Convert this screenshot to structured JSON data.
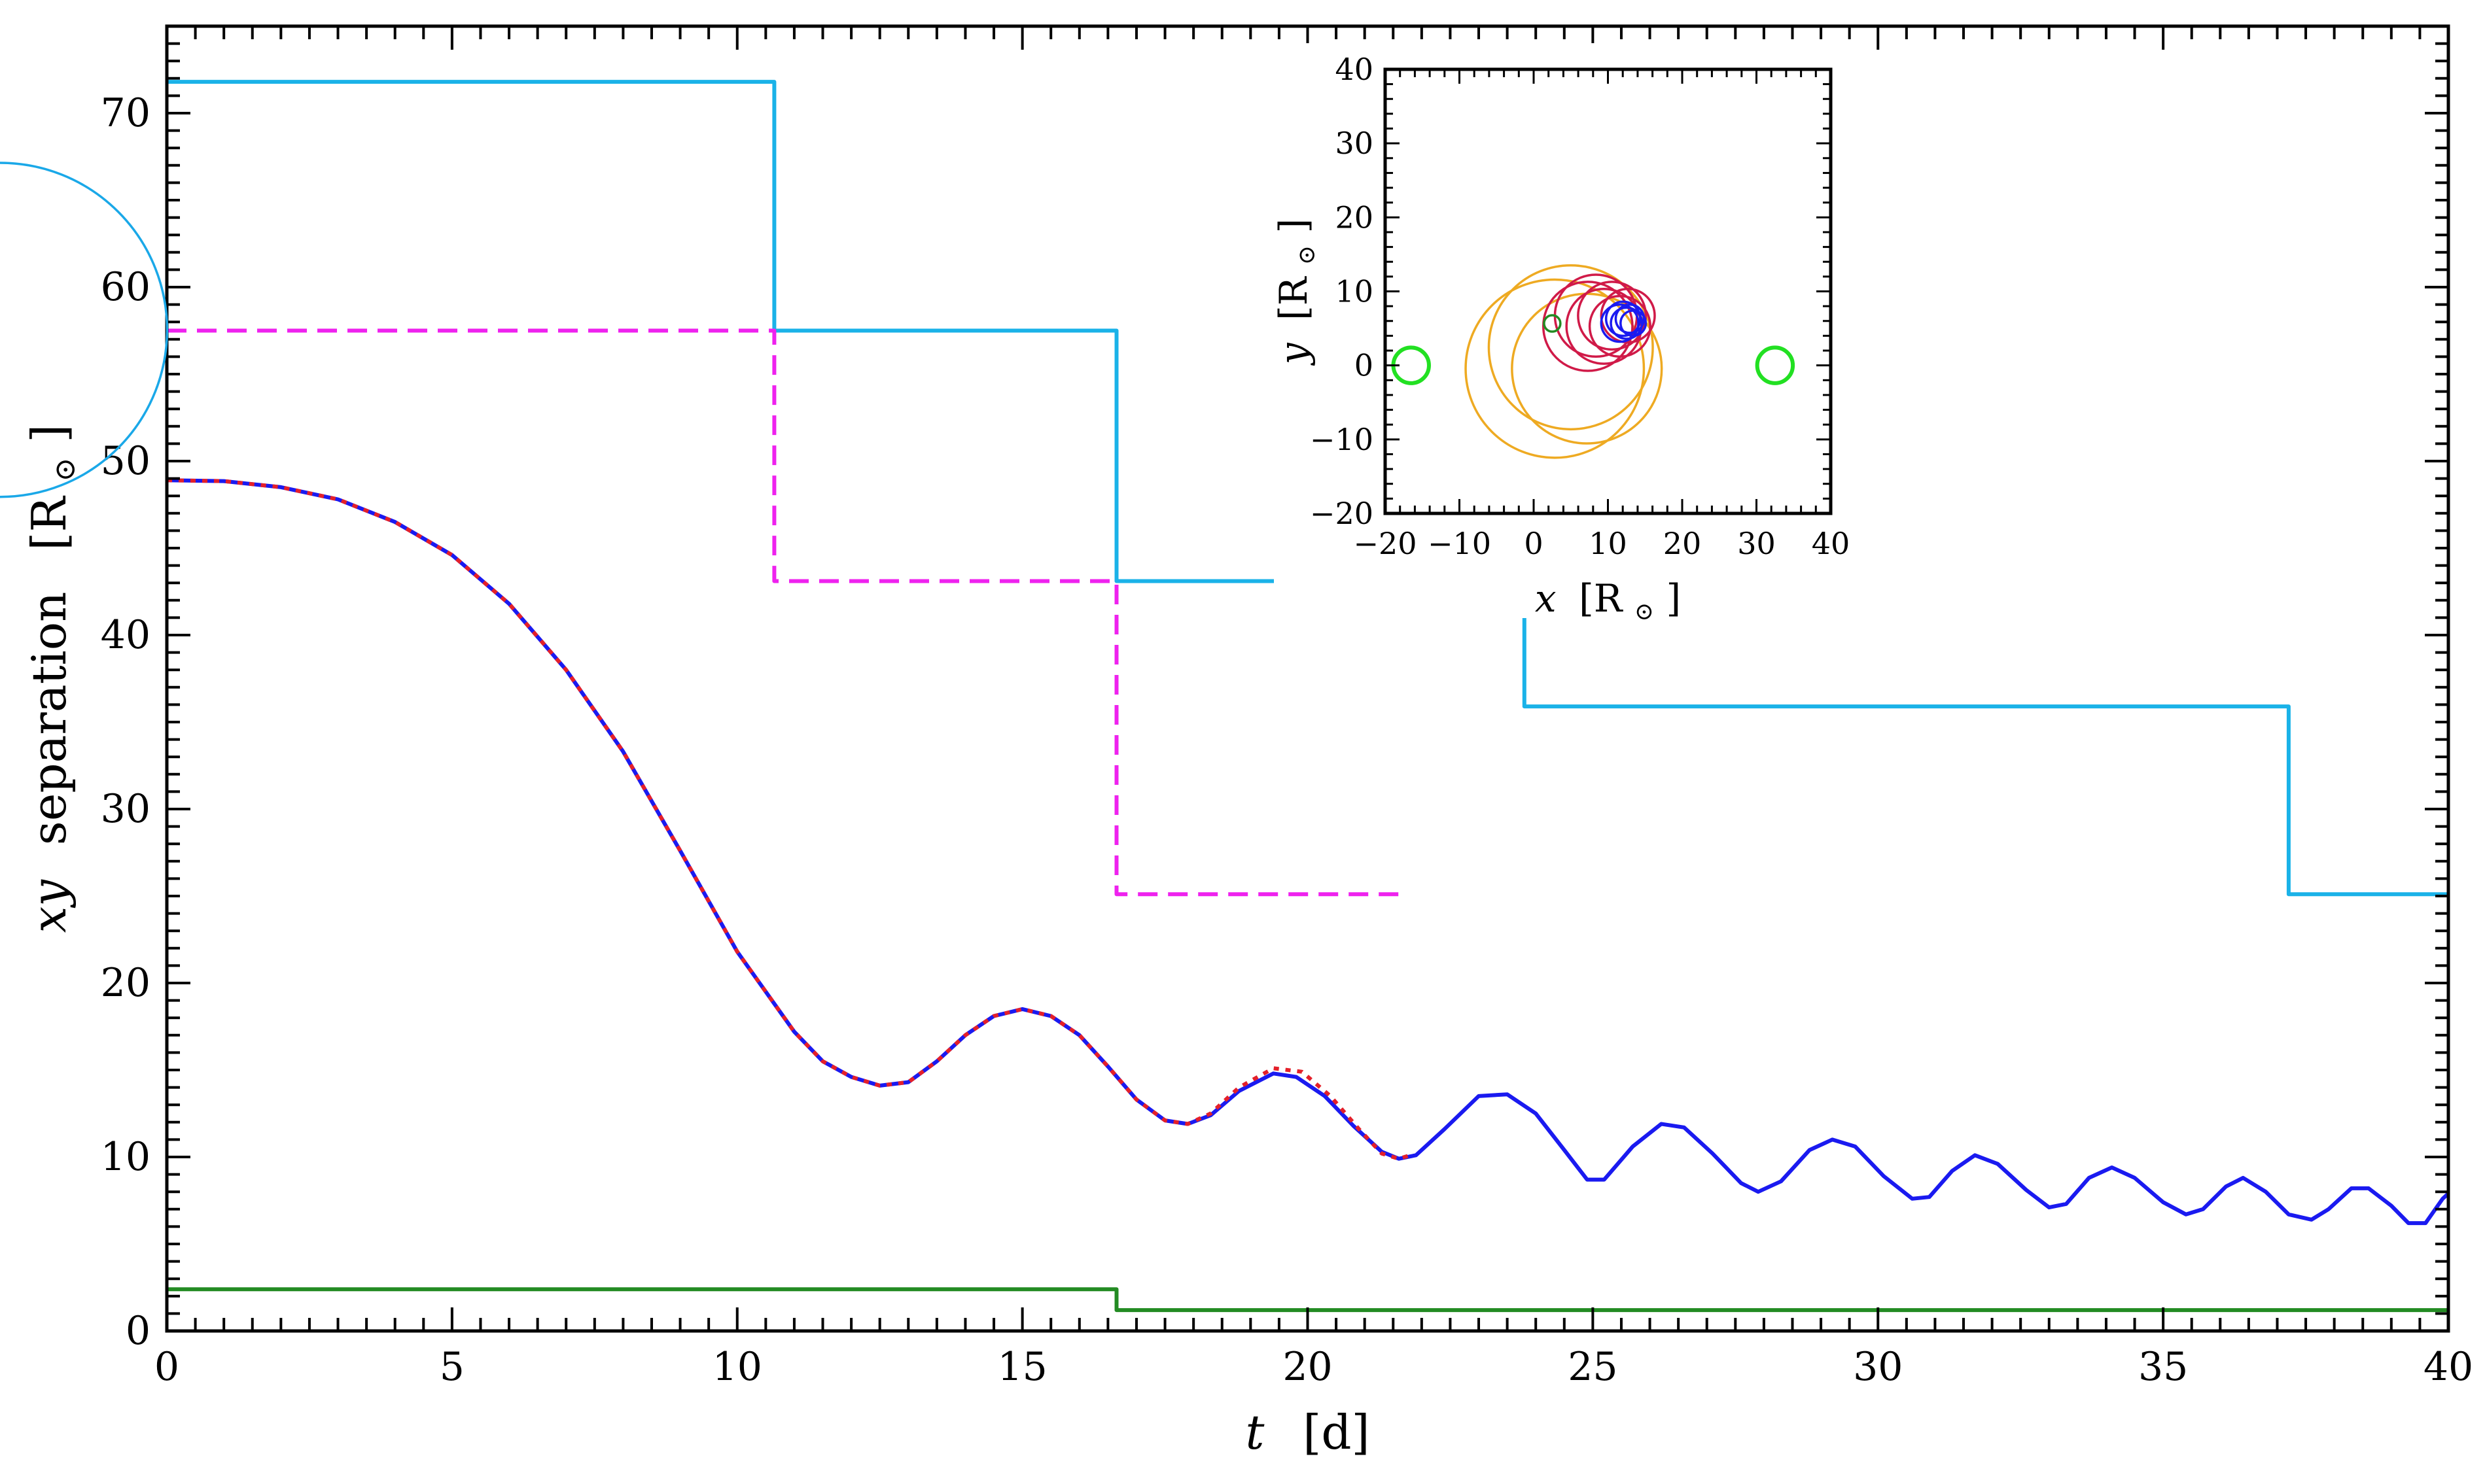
{
  "chart_data": [
    {
      "type": "line",
      "title": "",
      "xlabel_var": "t",
      "xlabel_unit": "[d]",
      "ylabel_var": "xy",
      "ylabel_word": "separation",
      "ylabel_unit": "[R",
      "ylabel_unit_close": "]",
      "xlim": [
        0,
        40
      ],
      "ylim": [
        0,
        75
      ],
      "xticks": [
        "0",
        "5",
        "10",
        "15",
        "20",
        "25",
        "30",
        "35",
        "40"
      ],
      "yticks": [
        "0",
        "10",
        "20",
        "30",
        "40",
        "50",
        "60",
        "70"
      ],
      "grid": false,
      "legend": "none",
      "series": [
        {
          "color": "#1ab2e8",
          "dash": "solid",
          "kind": "step",
          "points": [
            [
              0,
              71.8
            ],
            [
              10.65,
              71.8
            ],
            [
              10.65,
              57.5
            ],
            [
              16.65,
              57.5
            ],
            [
              16.65,
              43.1
            ],
            [
              23.8,
              43.1
            ],
            [
              23.8,
              35.9
            ],
            [
              37.2,
              35.9
            ],
            [
              37.2,
              25.1
            ],
            [
              40,
              25.1
            ]
          ]
        },
        {
          "color": "#ee22ee",
          "dash": "dashed",
          "kind": "step",
          "points": [
            [
              0,
              57.5
            ],
            [
              10.65,
              57.5
            ],
            [
              10.65,
              43.1
            ],
            [
              16.65,
              43.1
            ],
            [
              16.65,
              25.1
            ],
            [
              21.7,
              25.1
            ]
          ]
        },
        {
          "color": "#238b23",
          "dash": "solid",
          "kind": "step",
          "points": [
            [
              0,
              2.4
            ],
            [
              16.65,
              2.4
            ],
            [
              16.65,
              1.2
            ],
            [
              40,
              1.2
            ]
          ]
        },
        {
          "color": "#1a1af0",
          "dash": "solid",
          "kind": "line",
          "points": [
            [
              0,
              48.9
            ],
            [
              1,
              48.85
            ],
            [
              2,
              48.5
            ],
            [
              3,
              47.8
            ],
            [
              4,
              46.5
            ],
            [
              5,
              44.6
            ],
            [
              6,
              41.8
            ],
            [
              7,
              38.0
            ],
            [
              8,
              33.3
            ],
            [
              9,
              27.6
            ],
            [
              10,
              21.8
            ],
            [
              11,
              17.2
            ],
            [
              11.5,
              15.5
            ],
            [
              12,
              14.6
            ],
            [
              12.5,
              14.1
            ],
            [
              13,
              14.3
            ],
            [
              13.5,
              15.5
            ],
            [
              14,
              17.0
            ],
            [
              14.5,
              18.1
            ],
            [
              15,
              18.5
            ],
            [
              15.5,
              18.1
            ],
            [
              16,
              17.0
            ],
            [
              16.5,
              15.2
            ],
            [
              17,
              13.3
            ],
            [
              17.5,
              12.1
            ],
            [
              17.9,
              11.9
            ],
            [
              18.3,
              12.4
            ],
            [
              18.8,
              13.8
            ],
            [
              19.4,
              14.8
            ],
            [
              19.8,
              14.6
            ],
            [
              20.3,
              13.5
            ],
            [
              20.8,
              11.8
            ],
            [
              21.3,
              10.3
            ],
            [
              21.6,
              9.9
            ],
            [
              21.9,
              10.1
            ],
            [
              22.4,
              11.6
            ],
            [
              23.0,
              13.5
            ],
            [
              23.5,
              13.6
            ],
            [
              24.0,
              12.5
            ],
            [
              24.5,
              10.4
            ],
            [
              24.9,
              8.7
            ],
            [
              25.2,
              8.7
            ],
            [
              25.7,
              10.6
            ],
            [
              26.2,
              11.9
            ],
            [
              26.6,
              11.7
            ],
            [
              27.1,
              10.2
            ],
            [
              27.6,
              8.5
            ],
            [
              27.9,
              8.0
            ],
            [
              28.3,
              8.6
            ],
            [
              28.8,
              10.4
            ],
            [
              29.2,
              11.0
            ],
            [
              29.6,
              10.6
            ],
            [
              30.1,
              8.9
            ],
            [
              30.6,
              7.6
            ],
            [
              30.9,
              7.7
            ],
            [
              31.3,
              9.2
            ],
            [
              31.7,
              10.1
            ],
            [
              32.1,
              9.6
            ],
            [
              32.6,
              8.1
            ],
            [
              33.0,
              7.1
            ],
            [
              33.3,
              7.3
            ],
            [
              33.7,
              8.8
            ],
            [
              34.1,
              9.4
            ],
            [
              34.5,
              8.8
            ],
            [
              35.0,
              7.4
            ],
            [
              35.4,
              6.7
            ],
            [
              35.7,
              7.0
            ],
            [
              36.1,
              8.3
            ],
            [
              36.4,
              8.8
            ],
            [
              36.8,
              8.0
            ],
            [
              37.2,
              6.7
            ],
            [
              37.6,
              6.4
            ],
            [
              37.9,
              7.0
            ],
            [
              38.3,
              8.2
            ],
            [
              38.6,
              8.2
            ],
            [
              39.0,
              7.2
            ],
            [
              39.3,
              6.2
            ],
            [
              39.6,
              6.2
            ],
            [
              39.9,
              7.6
            ],
            [
              40,
              7.9
            ]
          ]
        },
        {
          "color": "#e4202a",
          "dash": "dotted",
          "kind": "line",
          "points": [
            [
              0,
              48.9
            ],
            [
              1,
              48.85
            ],
            [
              2,
              48.5
            ],
            [
              3,
              47.8
            ],
            [
              4,
              46.5
            ],
            [
              5,
              44.6
            ],
            [
              6,
              41.8
            ],
            [
              7,
              38.0
            ],
            [
              8,
              33.3
            ],
            [
              9,
              27.6
            ],
            [
              10,
              21.8
            ],
            [
              11,
              17.2
            ],
            [
              11.5,
              15.5
            ],
            [
              12,
              14.6
            ],
            [
              12.5,
              14.1
            ],
            [
              13,
              14.3
            ],
            [
              13.5,
              15.5
            ],
            [
              14,
              17.0
            ],
            [
              14.5,
              18.1
            ],
            [
              15,
              18.5
            ],
            [
              15.5,
              18.1
            ],
            [
              16,
              17.0
            ],
            [
              16.5,
              15.2
            ],
            [
              17,
              13.3
            ],
            [
              17.5,
              12.1
            ],
            [
              17.9,
              11.9
            ],
            [
              18.3,
              12.5
            ],
            [
              18.8,
              14.0
            ],
            [
              19.4,
              15.1
            ],
            [
              19.9,
              14.9
            ],
            [
              20.4,
              13.5
            ],
            [
              20.9,
              11.6
            ],
            [
              21.3,
              10.2
            ],
            [
              21.6,
              9.9
            ],
            [
              21.8,
              10.1
            ]
          ]
        }
      ]
    },
    {
      "type": "line",
      "title": "",
      "xlabel_var": "x",
      "xlabel_unit": "[R",
      "xlabel_unit_close": "]",
      "ylabel_var": "y",
      "ylabel_unit": "[R",
      "ylabel_unit_close": "]",
      "xlim": [
        -20,
        40
      ],
      "ylim": [
        -20,
        40
      ],
      "xticks": [
        "−20",
        "−10",
        "0",
        "10",
        "20",
        "30",
        "40"
      ],
      "yticks": [
        "−20",
        "−10",
        "0",
        "10",
        "20",
        "30",
        "40"
      ],
      "grid": false,
      "legend": "none",
      "markers": [
        {
          "label": "start-left",
          "x": -16.5,
          "y": 0,
          "radius": 2.4,
          "color": "#22e022"
        },
        {
          "label": "start-right",
          "x": 32.5,
          "y": 0,
          "radius": 2.4,
          "color": "#22e022"
        }
      ],
      "paths": [
        {
          "color": "#1aa8e8",
          "kind": "arc",
          "cx": 5,
          "cy": 7.5,
          "rx": 22.5,
          "ry": 22.5,
          "from_deg": 0,
          "to_deg": 360,
          "note": ""
        },
        {
          "color": "#eeaa22",
          "kind": "loops",
          "cx": 5,
          "cy": 1,
          "rx": 12,
          "ry": 12,
          "n": 3
        },
        {
          "color": "#d01a48",
          "kind": "loops",
          "cx": 10,
          "cy": 6,
          "rx": 6,
          "ry": 6,
          "n": 6
        },
        {
          "color": "#1a1af0",
          "kind": "loops",
          "cx": 12.5,
          "cy": 6,
          "rx": 2.5,
          "ry": 2.5,
          "n": 5
        },
        {
          "color": "#238b23",
          "kind": "loops",
          "cx": 2.5,
          "cy": 5.8,
          "rx": 1.1,
          "ry": 1.1,
          "n": 1
        }
      ]
    }
  ]
}
